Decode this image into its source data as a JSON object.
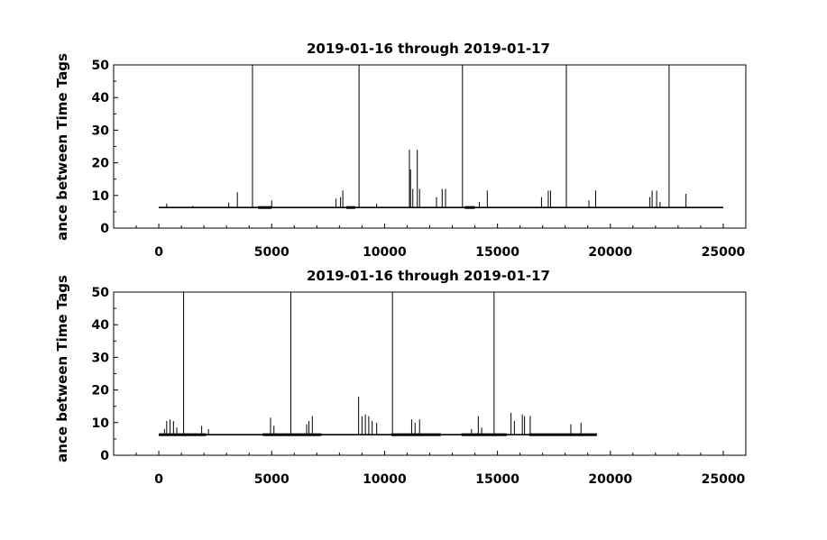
{
  "chart_data": [
    {
      "type": "line",
      "title": "2019-01-16 through 2019-01-17",
      "xlabel": "",
      "ylabel": "ance between Time Tags",
      "xlim": [
        -2000,
        26000
      ],
      "ylim": [
        0,
        50
      ],
      "xticks": [
        0,
        5000,
        10000,
        15000,
        20000,
        25000
      ],
      "yticks": [
        0,
        10,
        20,
        30,
        40,
        50
      ],
      "xtick_labels": [
        "0",
        "5000",
        "10000",
        "15000",
        "20000",
        "25000"
      ],
      "ytick_labels": [
        "0",
        "10",
        "20",
        "30",
        "40",
        "50"
      ],
      "grid": false,
      "legend": "none",
      "line_color": "#000000",
      "series": [
        {
          "x_range": [
            0,
            25000
          ],
          "baseline": 6.3,
          "spikes": [
            {
              "x": 350,
              "y": 7.5
            },
            {
              "x": 1500,
              "y": 6.8
            },
            {
              "x": 3100,
              "y": 7.8
            },
            {
              "x": 3480,
              "y": 11
            },
            {
              "x": 4150,
              "y": 50
            },
            {
              "x": 5000,
              "y": 8.5
            },
            {
              "x": 7850,
              "y": 9
            },
            {
              "x": 8050,
              "y": 9.5
            },
            {
              "x": 8150,
              "y": 11.5
            },
            {
              "x": 8870,
              "y": 50
            },
            {
              "x": 9650,
              "y": 7.5
            },
            {
              "x": 11100,
              "y": 24
            },
            {
              "x": 11150,
              "y": 18
            },
            {
              "x": 11250,
              "y": 12
            },
            {
              "x": 11450,
              "y": 24
            },
            {
              "x": 11550,
              "y": 12
            },
            {
              "x": 12300,
              "y": 9.5
            },
            {
              "x": 12550,
              "y": 12
            },
            {
              "x": 12700,
              "y": 12
            },
            {
              "x": 13450,
              "y": 50
            },
            {
              "x": 14200,
              "y": 8
            },
            {
              "x": 14550,
              "y": 11.5
            },
            {
              "x": 16950,
              "y": 9.5
            },
            {
              "x": 17250,
              "y": 11.5
            },
            {
              "x": 17350,
              "y": 11.5
            },
            {
              "x": 18050,
              "y": 50
            },
            {
              "x": 19050,
              "y": 8.5
            },
            {
              "x": 19350,
              "y": 11.5
            },
            {
              "x": 21750,
              "y": 9.5
            },
            {
              "x": 21850,
              "y": 11.5
            },
            {
              "x": 22050,
              "y": 11.5
            },
            {
              "x": 22200,
              "y": 8
            },
            {
              "x": 22600,
              "y": 50
            },
            {
              "x": 23350,
              "y": 10.5
            }
          ],
          "thick_segments": [
            [
              4400,
              5000
            ],
            [
              8300,
              8700
            ],
            [
              13550,
              14000
            ]
          ]
        }
      ]
    },
    {
      "type": "line",
      "title": "2019-01-16 through 2019-01-17",
      "xlabel": "",
      "ylabel": "ance between Time Tags",
      "xlim": [
        -2000,
        26000
      ],
      "ylim": [
        0,
        50
      ],
      "xticks": [
        0,
        5000,
        10000,
        15000,
        20000,
        25000
      ],
      "yticks": [
        0,
        10,
        20,
        30,
        40,
        50
      ],
      "xtick_labels": [
        "0",
        "5000",
        "10000",
        "15000",
        "20000",
        "25000"
      ],
      "ytick_labels": [
        "0",
        "10",
        "20",
        "30",
        "40",
        "50"
      ],
      "grid": false,
      "legend": "none",
      "line_color": "#000000",
      "series": [
        {
          "x_range": [
            0,
            19400
          ],
          "baseline": 6.3,
          "spikes": [
            {
              "x": 250,
              "y": 8
            },
            {
              "x": 350,
              "y": 10.5
            },
            {
              "x": 500,
              "y": 11
            },
            {
              "x": 650,
              "y": 10.5
            },
            {
              "x": 800,
              "y": 8.5
            },
            {
              "x": 1100,
              "y": 50
            },
            {
              "x": 1900,
              "y": 9
            },
            {
              "x": 2200,
              "y": 8
            },
            {
              "x": 4950,
              "y": 11.5
            },
            {
              "x": 5100,
              "y": 9
            },
            {
              "x": 5850,
              "y": 50
            },
            {
              "x": 6550,
              "y": 9.5
            },
            {
              "x": 6650,
              "y": 10.5
            },
            {
              "x": 6800,
              "y": 12
            },
            {
              "x": 8850,
              "y": 18
            },
            {
              "x": 9000,
              "y": 12
            },
            {
              "x": 9150,
              "y": 12.5
            },
            {
              "x": 9300,
              "y": 12
            },
            {
              "x": 9450,
              "y": 10.5
            },
            {
              "x": 9650,
              "y": 10
            },
            {
              "x": 10350,
              "y": 50
            },
            {
              "x": 11200,
              "y": 11
            },
            {
              "x": 11350,
              "y": 10
            },
            {
              "x": 11550,
              "y": 11
            },
            {
              "x": 13850,
              "y": 8
            },
            {
              "x": 14150,
              "y": 12
            },
            {
              "x": 14300,
              "y": 8.5
            },
            {
              "x": 14850,
              "y": 50
            },
            {
              "x": 15600,
              "y": 13
            },
            {
              "x": 15750,
              "y": 10.5
            },
            {
              "x": 16100,
              "y": 12.5
            },
            {
              "x": 16200,
              "y": 12
            },
            {
              "x": 16450,
              "y": 12
            },
            {
              "x": 18250,
              "y": 9.5
            },
            {
              "x": 18700,
              "y": 10
            }
          ],
          "thick_segments": [
            [
              0,
              2100
            ],
            [
              4600,
              7200
            ],
            [
              10300,
              12500
            ],
            [
              13400,
              15400
            ],
            [
              16400,
              19400
            ]
          ]
        }
      ]
    }
  ]
}
